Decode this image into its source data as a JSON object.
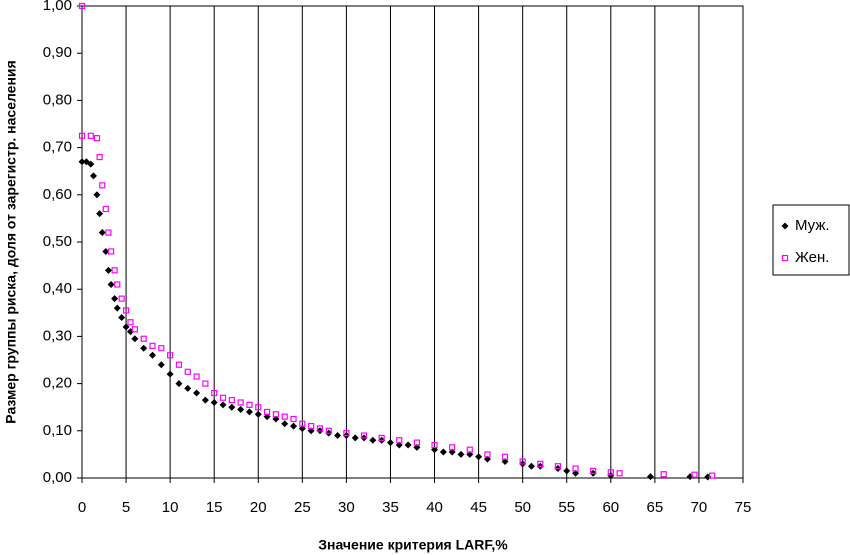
{
  "chart_data": {
    "type": "scatter",
    "y_label": "Размер группы риска, доля от зарегистр. населения",
    "x_label": "Значение критерия LARF,%",
    "xlim": [
      0,
      75
    ],
    "xticks": [
      0,
      5,
      10,
      15,
      20,
      25,
      30,
      35,
      40,
      45,
      50,
      55,
      60,
      65,
      70,
      75
    ],
    "ylim": [
      0,
      1
    ],
    "yticks": [
      {
        "value": 0,
        "label": "0,00"
      },
      {
        "value": 0.1,
        "label": "0,10"
      },
      {
        "value": 0.2,
        "label": "0,20"
      },
      {
        "value": 0.3,
        "label": "0,30"
      },
      {
        "value": 0.4,
        "label": "0,40"
      },
      {
        "value": 0.5,
        "label": "0,50"
      },
      {
        "value": 0.6,
        "label": "0,60"
      },
      {
        "value": 0.7,
        "label": "0,70"
      },
      {
        "value": 0.8,
        "label": "0,80"
      },
      {
        "value": 0.9,
        "label": "0,90"
      },
      {
        "value": 1,
        "label": "1,00"
      }
    ],
    "grid": "x",
    "legend": "right",
    "series": [
      {
        "name": "Муж.",
        "color": "#000000",
        "marker": "diamond",
        "x": [
          0,
          0.5,
          1,
          1.3,
          1.7,
          2,
          2.3,
          2.7,
          3,
          3.3,
          3.7,
          4,
          4.5,
          5,
          5.5,
          6,
          7,
          8,
          9,
          10,
          11,
          12,
          13,
          14,
          15,
          16,
          17,
          18,
          19,
          20,
          21,
          22,
          23,
          24,
          25,
          26,
          27,
          28,
          29,
          30,
          31,
          32,
          33,
          34,
          35,
          36,
          37,
          38,
          40,
          41,
          42,
          43,
          44,
          45,
          46,
          48,
          50,
          51,
          52,
          54,
          55,
          56,
          58,
          60,
          64.5,
          69,
          71
        ],
        "values": [
          0.67,
          0.67,
          0.665,
          0.64,
          0.6,
          0.56,
          0.52,
          0.48,
          0.44,
          0.41,
          0.38,
          0.36,
          0.34,
          0.32,
          0.31,
          0.295,
          0.275,
          0.26,
          0.24,
          0.22,
          0.2,
          0.19,
          0.18,
          0.165,
          0.16,
          0.155,
          0.15,
          0.145,
          0.14,
          0.135,
          0.13,
          0.125,
          0.115,
          0.11,
          0.105,
          0.1,
          0.1,
          0.095,
          0.09,
          0.09,
          0.085,
          0.085,
          0.08,
          0.08,
          0.075,
          0.07,
          0.07,
          0.065,
          0.06,
          0.055,
          0.055,
          0.05,
          0.05,
          0.045,
          0.04,
          0.035,
          0.03,
          0.025,
          0.025,
          0.02,
          0.015,
          0.01,
          0.01,
          0.005,
          0.003,
          0.003,
          0.002
        ]
      },
      {
        "name": "Жен.",
        "color": "#ff00ff",
        "marker": "square",
        "x": [
          0,
          0,
          1,
          1.7,
          2,
          2.3,
          2.7,
          3,
          3.3,
          3.7,
          4,
          4.5,
          5,
          5.5,
          6,
          7,
          8,
          9,
          10,
          11,
          12,
          13,
          14,
          15,
          16,
          17,
          18,
          19,
          20,
          21,
          22,
          23,
          24,
          25,
          26,
          27,
          28,
          30,
          32,
          34,
          36,
          38,
          40,
          42,
          44,
          46,
          48,
          50,
          52,
          54,
          56,
          58,
          60,
          61,
          66,
          69.5,
          71.5
        ],
        "values": [
          1.0,
          0.725,
          0.725,
          0.72,
          0.68,
          0.62,
          0.57,
          0.52,
          0.48,
          0.44,
          0.41,
          0.38,
          0.355,
          0.33,
          0.315,
          0.295,
          0.28,
          0.275,
          0.26,
          0.24,
          0.225,
          0.215,
          0.2,
          0.18,
          0.17,
          0.165,
          0.16,
          0.155,
          0.15,
          0.14,
          0.135,
          0.13,
          0.125,
          0.115,
          0.11,
          0.105,
          0.1,
          0.095,
          0.09,
          0.085,
          0.08,
          0.075,
          0.07,
          0.065,
          0.06,
          0.05,
          0.045,
          0.035,
          0.03,
          0.025,
          0.02,
          0.015,
          0.012,
          0.01,
          0.008,
          0.007,
          0.005
        ]
      }
    ]
  }
}
